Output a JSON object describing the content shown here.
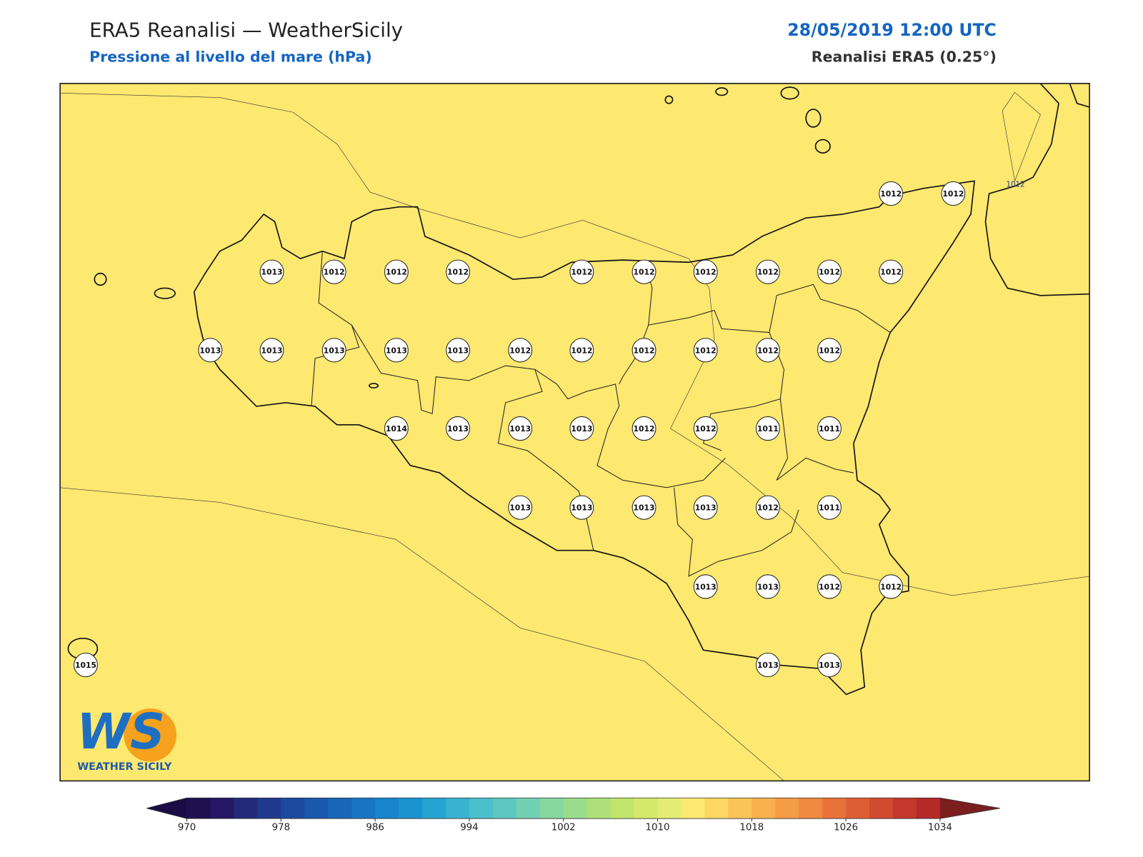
{
  "header": {
    "title": "ERA5 Reanalisi — WeatherSicily",
    "subtitle": "Pressione al livello del mare (hPa)",
    "date": "28/05/2019 12:00 UTC",
    "source": "Reanalisi ERA5 (0.25°)"
  },
  "map": {
    "stations": [
      1012,
      1012,
      1013,
      1012,
      1012,
      1012,
      1012,
      1012,
      1012,
      1012,
      1012,
      1012,
      1013,
      1013,
      1013,
      1013,
      1013,
      1012,
      1012,
      1012,
      1012,
      1012,
      1012,
      1014,
      1013,
      1013,
      1013,
      1012,
      1012,
      1011,
      1011,
      1013,
      1013,
      1013,
      1013,
      1012,
      1011,
      1013,
      1013,
      1012,
      1012,
      1015,
      1013,
      1013
    ],
    "contour_label": "1012"
  },
  "colorbar": {
    "lim": [
      970,
      1034
    ],
    "ticks": [
      970,
      978,
      986,
      994,
      1002,
      1010,
      1018,
      1026,
      1034
    ],
    "colors": [
      "#201050",
      "#241866",
      "#232a7a",
      "#1f3a8c",
      "#1d4a9e",
      "#1a58ac",
      "#1866b8",
      "#1775c4",
      "#1784cc",
      "#1b93d0",
      "#27a3d2",
      "#39b2d0",
      "#4bbfcb",
      "#5ec8c0",
      "#72d0b2",
      "#86d7a0",
      "#9adc8c",
      "#aee07a",
      "#c2e46c",
      "#d4e86a",
      "#e3ec72",
      "#fde870",
      "#fdd762",
      "#fbc458",
      "#f8b04e",
      "#f49c46",
      "#ef8840",
      "#e8733a",
      "#de5e34",
      "#d24a2f",
      "#c4382b",
      "#b42a28"
    ],
    "under": "#1c0c45",
    "over": "#7a1e1e"
  },
  "logo": {
    "mark": "WS",
    "name": "WEATHER SICILY"
  }
}
